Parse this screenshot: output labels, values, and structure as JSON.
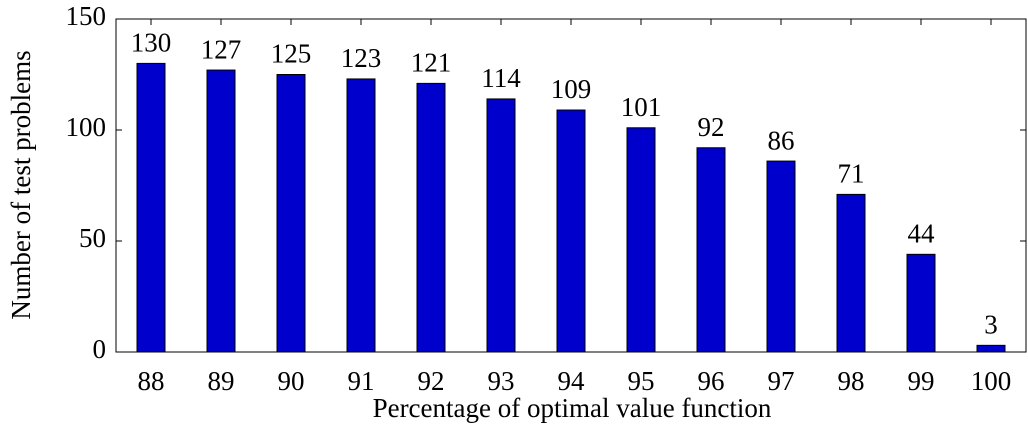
{
  "chart_data": {
    "type": "bar",
    "xlabel": "Percentage of optimal value function",
    "ylabel": "Number of test problems",
    "categories": [
      "88",
      "89",
      "90",
      "91",
      "92",
      "93",
      "94",
      "95",
      "96",
      "97",
      "98",
      "99",
      "100"
    ],
    "values": [
      130,
      127,
      125,
      123,
      121,
      114,
      109,
      101,
      92,
      86,
      71,
      44,
      3
    ],
    "color": "#0000cc",
    "ylim": [
      0,
      150
    ],
    "yticks": [
      0,
      50,
      100,
      150
    ],
    "grid": false
  }
}
